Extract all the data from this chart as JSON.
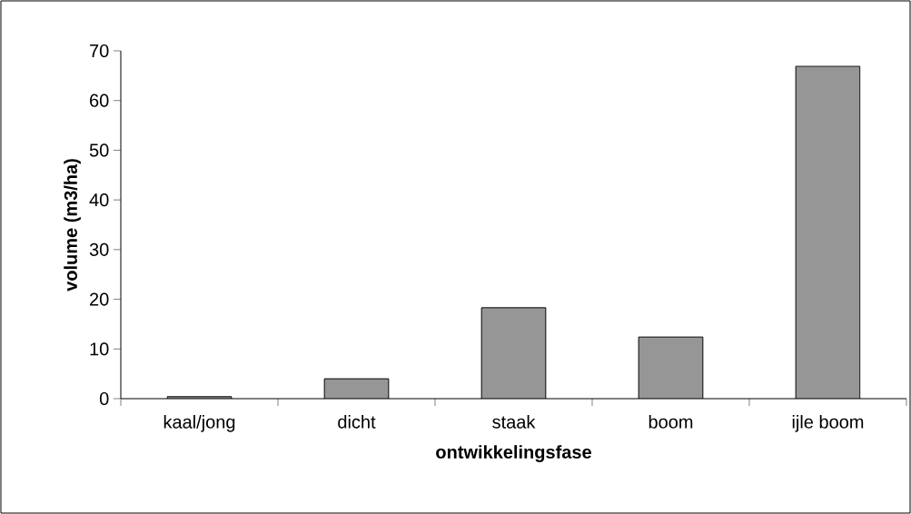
{
  "chart_data": {
    "type": "bar",
    "xlabel": "ontwikkelingsfase",
    "ylabel": "volume (m3/ha)",
    "categories": [
      "kaal/jong",
      "dicht",
      "staak",
      "boom",
      "ijle boom"
    ],
    "values": [
      0.4,
      4.0,
      18.3,
      12.4,
      66.9
    ],
    "color": "#969696",
    "ylim": [
      0,
      70
    ],
    "yticks": [
      0,
      10,
      20,
      30,
      40,
      50,
      60,
      70
    ],
    "grid": false
  }
}
